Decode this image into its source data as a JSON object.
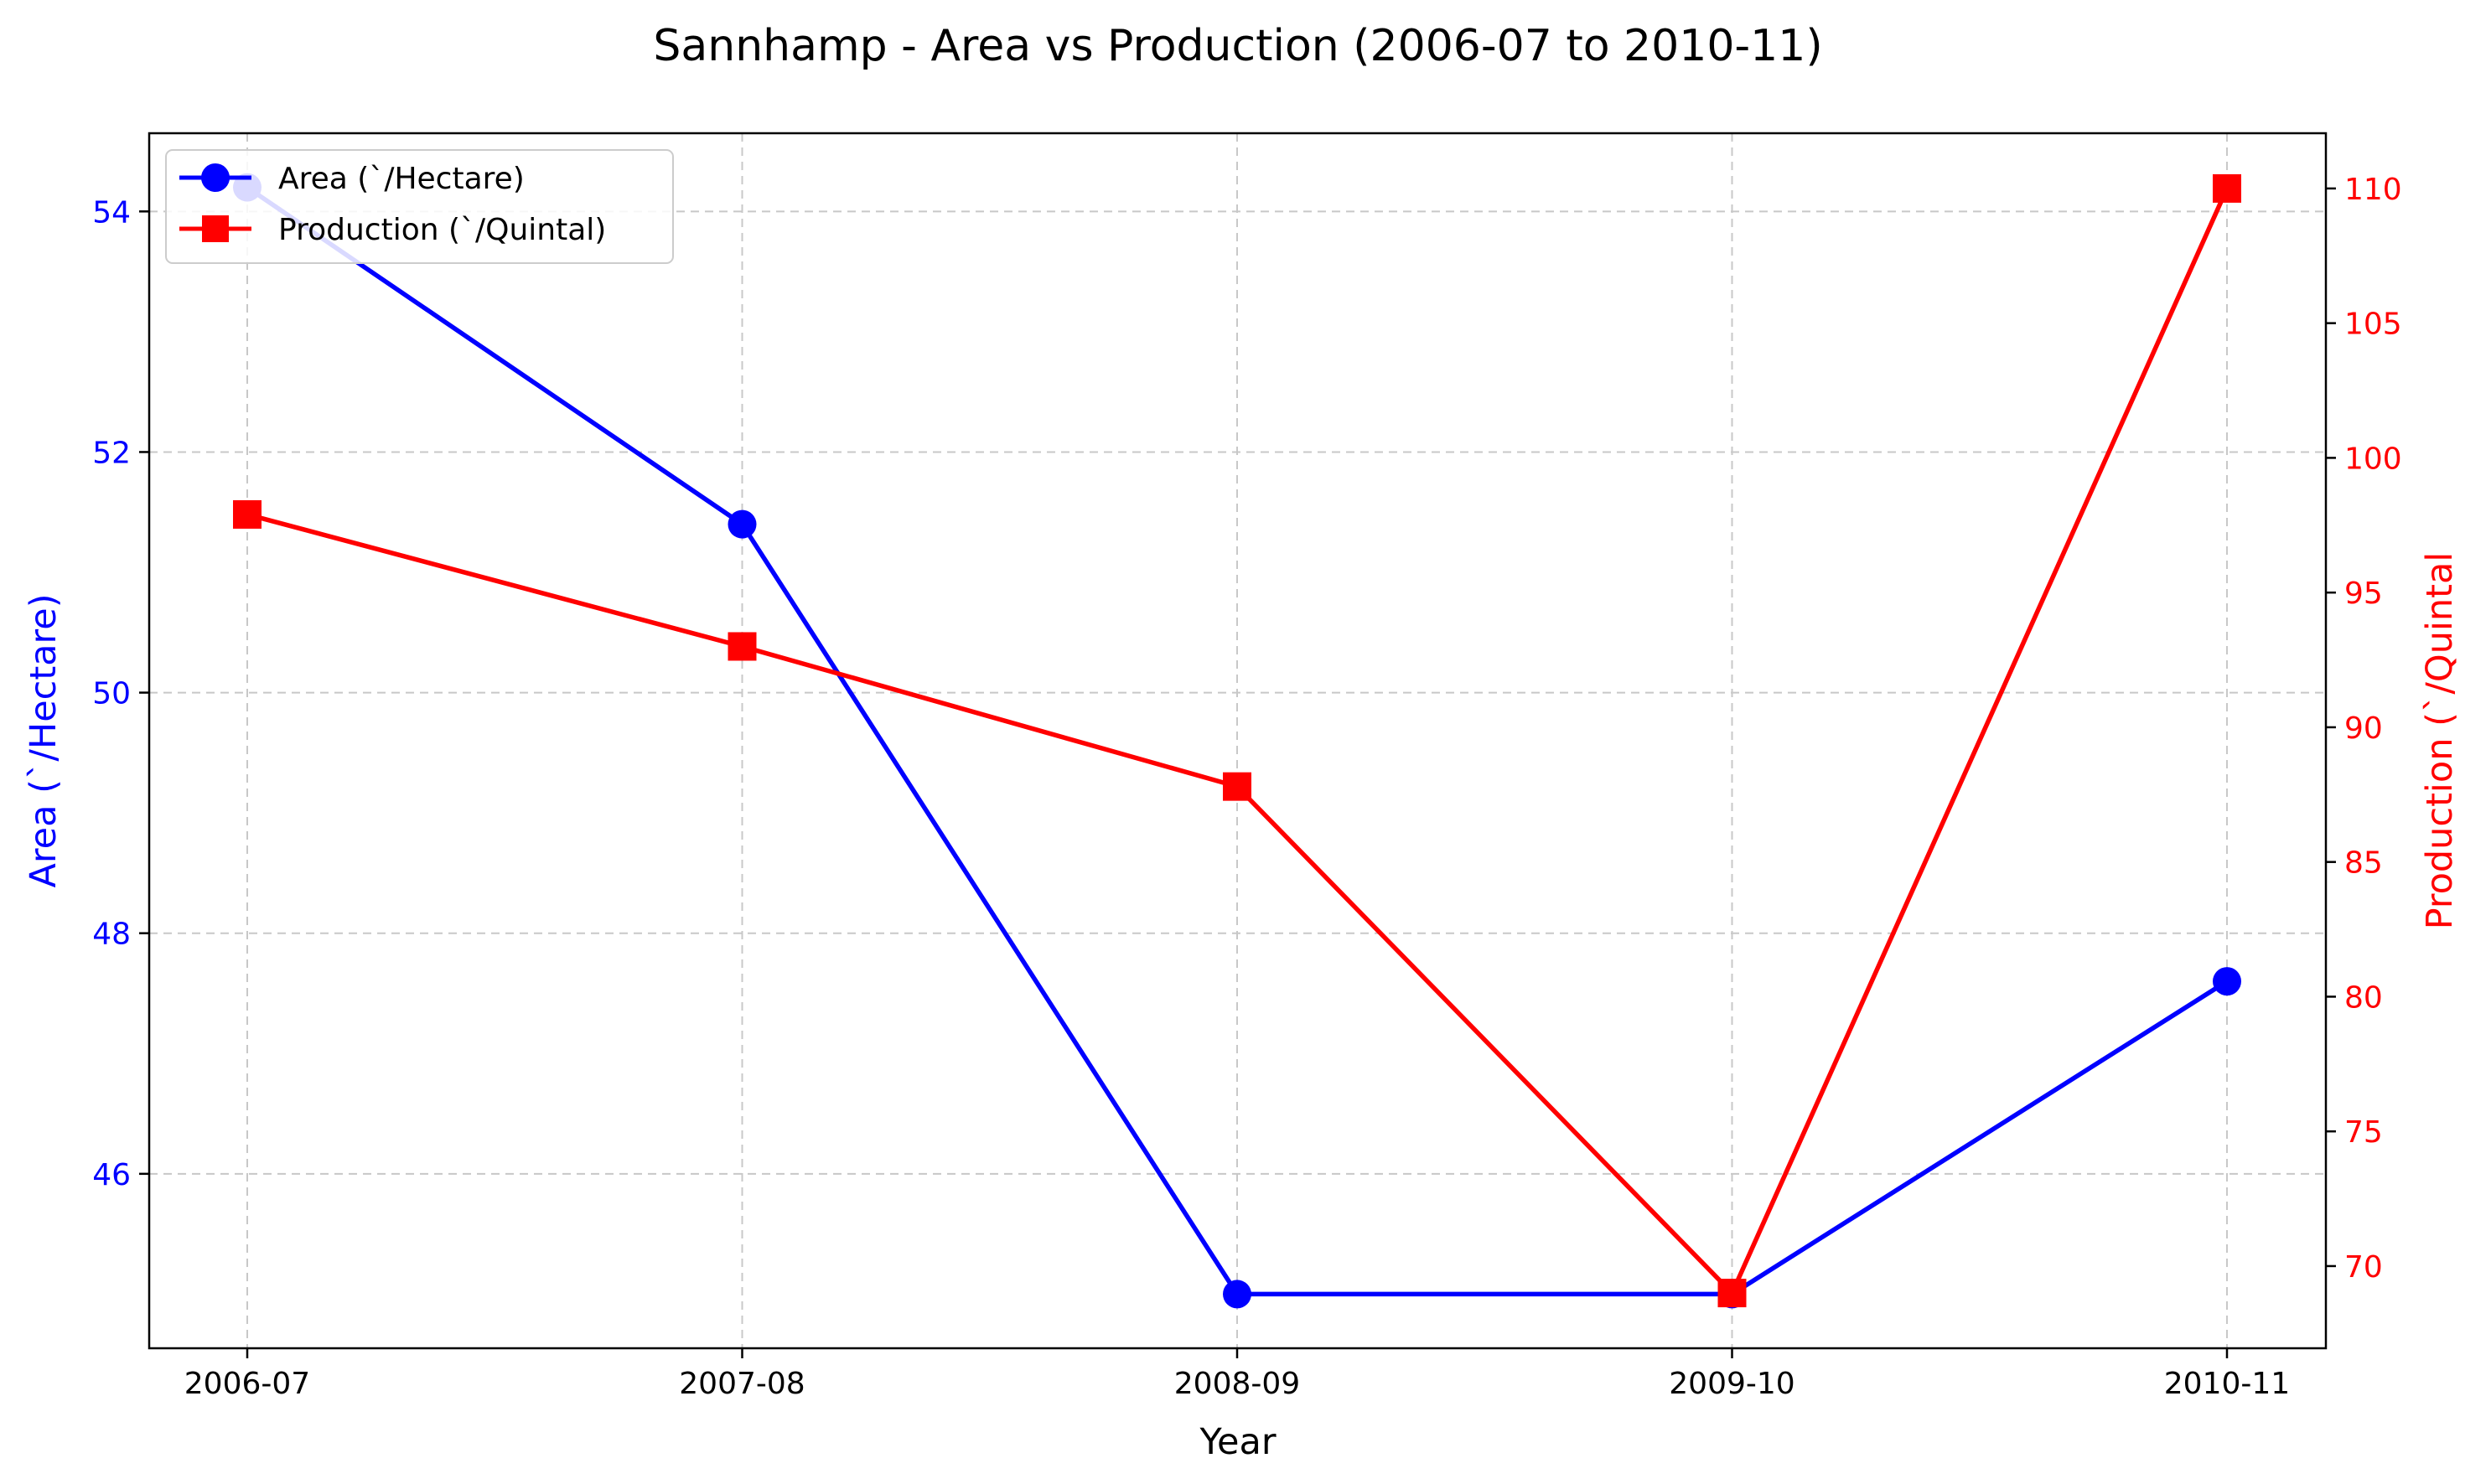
{
  "chart_data": {
    "type": "line",
    "title": "Sannhamp  - Area vs Production (2006-07 to 2010-11)",
    "xlabel": "Year",
    "categories": [
      "2006-07",
      "2007-08",
      "2008-09",
      "2009-10",
      "2010-11"
    ],
    "grid": true,
    "legend_position": "upper-left",
    "left_axis": {
      "label": "Area (`/Hectare)",
      "ylim": [
        44.55,
        54.65
      ],
      "ticks": [
        46,
        48,
        50,
        52,
        54
      ],
      "color": "#0000ff"
    },
    "right_axis": {
      "label": "Production (`/Quintal",
      "ylim": [
        66.95,
        112.05
      ],
      "ticks": [
        70,
        75,
        80,
        85,
        90,
        95,
        100,
        105,
        110
      ],
      "color": "#ff0000"
    },
    "series": [
      {
        "name": "Area (`/Hectare)",
        "axis": "left",
        "marker": "circle",
        "color": "#0000ff",
        "values": [
          54.2,
          51.4,
          45.0,
          45.0,
          47.6
        ]
      },
      {
        "name": "Production (`/Quintal)",
        "axis": "right",
        "marker": "square",
        "color": "#ff0000",
        "values": [
          97.9,
          93.0,
          87.8,
          69.0,
          110.0
        ]
      }
    ]
  }
}
